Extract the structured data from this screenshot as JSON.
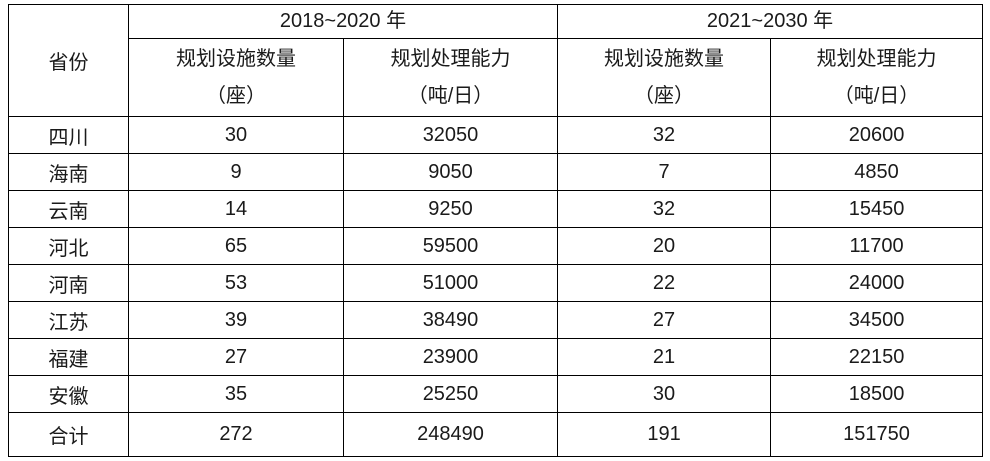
{
  "table": {
    "province_header": "省份",
    "groups": [
      {
        "label": "2018~2020 年",
        "columns": [
          {
            "title": "规划设施数量",
            "unit": "（座）"
          },
          {
            "title": "规划处理能力",
            "unit": "（吨/日）"
          }
        ]
      },
      {
        "label": "2021~2030 年",
        "columns": [
          {
            "title": "规划设施数量",
            "unit": "（座）"
          },
          {
            "title": "规划处理能力",
            "unit": "（吨/日）"
          }
        ]
      }
    ],
    "rows": [
      {
        "province": "四川",
        "values": [
          "30",
          "32050",
          "32",
          "20600"
        ],
        "is_total": false
      },
      {
        "province": "海南",
        "values": [
          "9",
          "9050",
          "7",
          "4850"
        ],
        "is_total": false
      },
      {
        "province": "云南",
        "values": [
          "14",
          "9250",
          "32",
          "15450"
        ],
        "is_total": false
      },
      {
        "province": "河北",
        "values": [
          "65",
          "59500",
          "20",
          "11700"
        ],
        "is_total": false
      },
      {
        "province": "河南",
        "values": [
          "53",
          "51000",
          "22",
          "24000"
        ],
        "is_total": false
      },
      {
        "province": "江苏",
        "values": [
          "39",
          "38490",
          "27",
          "34500"
        ],
        "is_total": false
      },
      {
        "province": "福建",
        "values": [
          "27",
          "23900",
          "21",
          "22150"
        ],
        "is_total": false
      },
      {
        "province": "安徽",
        "values": [
          "35",
          "25250",
          "30",
          "18500"
        ],
        "is_total": false
      },
      {
        "province": "合计",
        "values": [
          "272",
          "248490",
          "191",
          "151750"
        ],
        "is_total": true
      }
    ],
    "colors": {
      "border": "#000000",
      "text": "#1a1a1a",
      "background": "#ffffff"
    }
  }
}
